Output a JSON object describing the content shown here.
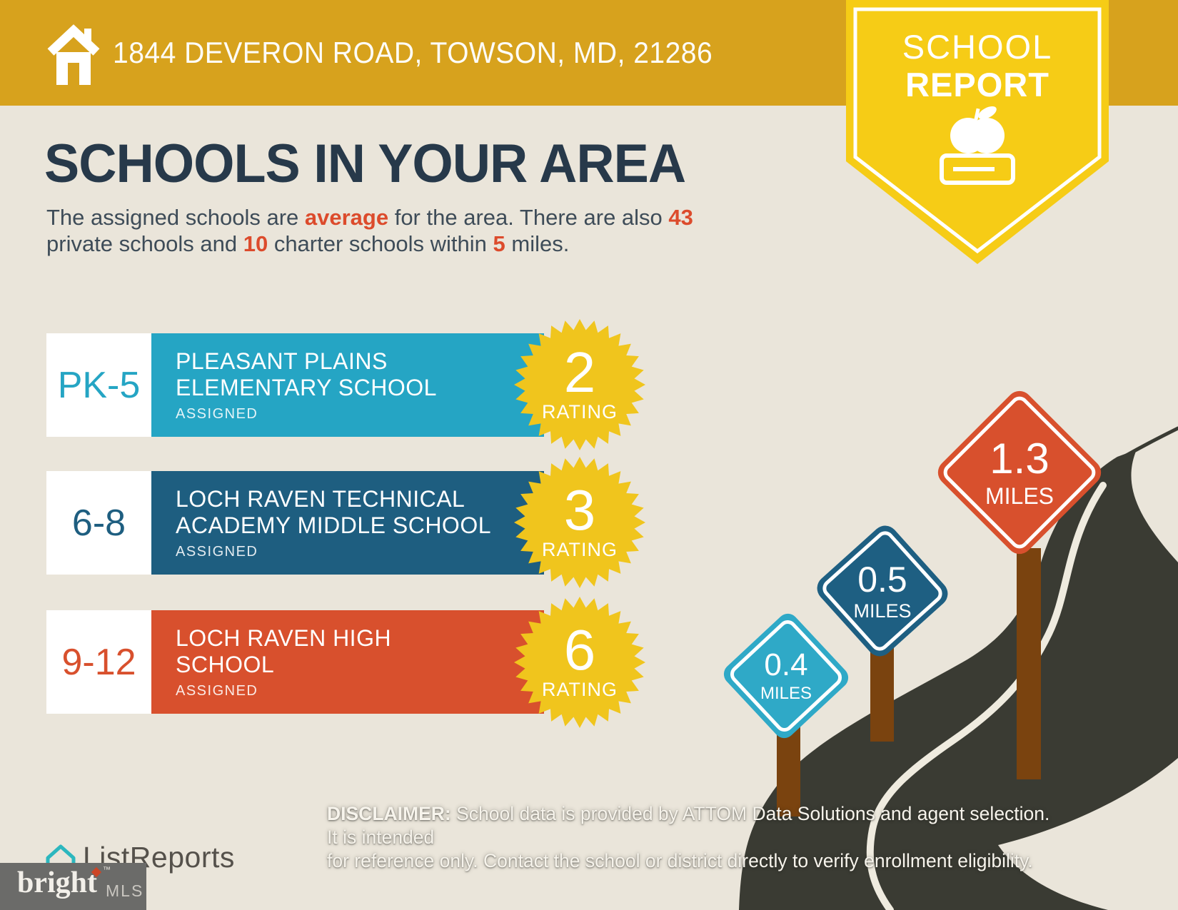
{
  "header": {
    "address": "1844 DEVERON ROAD, TOWSON, MD, 21286"
  },
  "ribbon": {
    "line1": "SCHOOL",
    "line2": "REPORT",
    "icon": "apple-on-book-icon"
  },
  "title": "SCHOOLS IN YOUR AREA",
  "subtitle": {
    "parts": [
      "The assigned schools are ",
      "average",
      " for the area. There are also ",
      "43",
      "private schools and ",
      "10",
      " charter schools within ",
      "5",
      " miles."
    ]
  },
  "schools": [
    {
      "grades": "PK-5",
      "name_line1": "PLEASANT PLAINS",
      "name_line2": "ELEMENTARY SCHOOL",
      "status": "ASSIGNED",
      "rating": "2",
      "rating_label": "RATING",
      "color": "#25A5C4"
    },
    {
      "grades": "6-8",
      "name_line1": "LOCH RAVEN TECHNICAL",
      "name_line2": "ACADEMY MIDDLE SCHOOL",
      "status": "ASSIGNED",
      "rating": "3",
      "rating_label": "RATING",
      "color": "#1E5E80"
    },
    {
      "grades": "9-12",
      "name_line1": "LOCH RAVEN HIGH",
      "name_line2": "SCHOOL",
      "status": "ASSIGNED",
      "rating": "6",
      "rating_label": "RATING",
      "color": "#D8502D"
    }
  ],
  "signs": [
    {
      "distance": "0.4",
      "unit": "MILES",
      "color": "#2FA9C7"
    },
    {
      "distance": "0.5",
      "unit": "MILES",
      "color": "#1E5F82"
    },
    {
      "distance": "1.3",
      "unit": "MILES",
      "color": "#D8502D"
    }
  ],
  "footer": {
    "disclaimer_label": "DISCLAIMER:",
    "disclaimer_line1": " School data is provided by ATTOM Data Solutions and agent selection. It is intended",
    "disclaimer_line2": "for reference only. Contact the school or district directly to verify enrollment eligibility.",
    "listreports": "ListReports",
    "bright": "bright",
    "mls": "MLS"
  },
  "colors": {
    "banner_gold": "#D7A21D",
    "ribbon_yellow": "#F6CC16",
    "background_beige": "#EAE5DA",
    "title_navy": "#27394A",
    "accent_red": "#DC4B2C",
    "rating_burst_yellow": "#F0C51D",
    "road_charcoal": "#3A3B33",
    "post_brown": "#7A430F"
  }
}
